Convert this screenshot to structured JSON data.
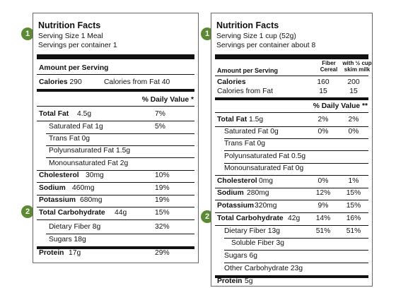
{
  "marker_color": "#5b8a32",
  "left_label": {
    "title": "Nutrition Facts",
    "serving_size": "Serving Size 1 Meal",
    "servings_per_container": "Servings per container 1",
    "amount_per_serving": "Amount per Serving",
    "calories_label": "Calories",
    "calories_value": "290",
    "calories_from_fat": "Calories from Fat 40",
    "daily_value_header": "% Daily Value *",
    "rows": [
      {
        "label": "Total Fat",
        "amount": "4.5g",
        "dv": "7%"
      },
      {
        "label": "Saturated Fat 1g",
        "amount": "",
        "dv": "5%"
      },
      {
        "label": "Trans Fat 0g",
        "amount": "",
        "dv": ""
      },
      {
        "label": "Polyunsaturated Fat 1.5g",
        "amount": "",
        "dv": ""
      },
      {
        "label": "Monounsaturated Fat 2g",
        "amount": "",
        "dv": ""
      },
      {
        "label": "Cholesterol",
        "amount": "30mg",
        "dv": "10%"
      },
      {
        "label": "Sodium",
        "amount": "460mg",
        "dv": "19%"
      },
      {
        "label": "Potassium",
        "amount": "680mg",
        "dv": "19%"
      },
      {
        "label": "Total Carbohydrate",
        "amount": "44g",
        "dv": "15%"
      },
      {
        "label": "Dietary Fiber 8g",
        "amount": "",
        "dv": "32%"
      },
      {
        "label": "Sugars 18g",
        "amount": "",
        "dv": ""
      },
      {
        "label": "Protein",
        "amount": "17g",
        "dv": "29%"
      }
    ],
    "markers": [
      "1",
      "2"
    ]
  },
  "right_label": {
    "title": "Nutrition Facts",
    "serving_size": "Serving Size 1 cup (52g)",
    "servings_per_container": "Servings per container about 8",
    "amount_per_serving": "Amount per Serving",
    "col1_header_line1": "Fiber",
    "col1_header_line2": "Cereal",
    "col2_header_line1": "with ½ cup",
    "col2_header_line2": "skim milk",
    "calories_label": "Calories",
    "calories_col1": "160",
    "calories_col2": "200",
    "calories_from_fat_label": "Calories from Fat",
    "calories_from_fat_col1": "15",
    "calories_from_fat_col2": "15",
    "daily_value_header": "% Daily Value **",
    "rows": [
      {
        "label": "Total Fat",
        "amount": "1.5g",
        "col1": "2%",
        "col2": "2%"
      },
      {
        "label": "Saturated Fat 0g",
        "amount": "",
        "col1": "0%",
        "col2": "0%"
      },
      {
        "label": "Trans Fat 0g",
        "amount": "",
        "col1": "",
        "col2": ""
      },
      {
        "label": "Polyunsaturated Fat 0.5g",
        "amount": "",
        "col1": "",
        "col2": ""
      },
      {
        "label": "Monounsaturated Fat 0g",
        "amount": "",
        "col1": "",
        "col2": ""
      },
      {
        "label": "Cholesterol",
        "amount": "0mg",
        "col1": "0%",
        "col2": "1%"
      },
      {
        "label": "Sodium",
        "amount": "280mg",
        "col1": "12%",
        "col2": "15%"
      },
      {
        "label": "Potassium",
        "amount": "320mg",
        "col1": "9%",
        "col2": "15%"
      },
      {
        "label": "Total Carbohydrate",
        "amount": "42g",
        "col1": "14%",
        "col2": "16%"
      },
      {
        "label": "Dietary Fiber 13g",
        "amount": "",
        "col1": "51%",
        "col2": "51%"
      },
      {
        "label": "Soluble Fiber 3g",
        "amount": "",
        "col1": "",
        "col2": ""
      },
      {
        "label": "Sugars 6g",
        "amount": "",
        "col1": "",
        "col2": ""
      },
      {
        "label": "Other Carbohydrate 23g",
        "amount": "",
        "col1": "",
        "col2": ""
      },
      {
        "label": "Protein",
        "amount": "5g",
        "col1": "",
        "col2": ""
      }
    ],
    "markers": [
      "1",
      "2"
    ]
  }
}
